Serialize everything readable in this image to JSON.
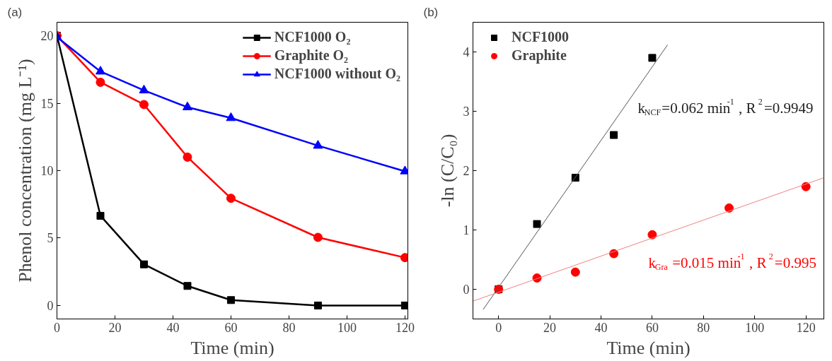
{
  "chart_data": [
    {
      "type": "line",
      "title": "(a)",
      "xlabel": "Time (min)",
      "ylabel": "Phenol concentration (mg L⁻¹)",
      "x": [
        0,
        15,
        30,
        45,
        60,
        90,
        120
      ],
      "xlim": [
        0,
        121
      ],
      "ylim": [
        -1,
        21
      ],
      "xticks": [
        0,
        20,
        40,
        60,
        80,
        100,
        120
      ],
      "yticks": [
        0,
        5,
        10,
        15,
        20
      ],
      "grid": false,
      "legend": "top right",
      "line_style": "solid",
      "series": [
        {
          "name": "NCF1000 O₂",
          "color": "#000000",
          "marker": "square",
          "values": [
            20,
            6.65,
            3.05,
            1.45,
            0.4,
            0,
            0
          ]
        },
        {
          "name": "Graphite O₂",
          "color": "#ff0000",
          "marker": "circle",
          "values": [
            20,
            16.55,
            14.9,
            11.0,
            7.95,
            5.05,
            3.55
          ]
        },
        {
          "name": "NCF1000 without O₂",
          "color": "#0000ff",
          "marker": "triangle",
          "values": [
            19.9,
            17.35,
            15.95,
            14.7,
            13.9,
            11.85,
            9.95
          ]
        }
      ]
    },
    {
      "type": "scatter",
      "title": "(b)",
      "xlabel": "Time (min)",
      "ylabel": "-ln (C/C₀)",
      "xlim": [
        -10,
        127
      ],
      "ylim": [
        -0.5,
        4.5
      ],
      "xticks": [
        0,
        20,
        40,
        60,
        80,
        100,
        120
      ],
      "yticks": [
        0,
        1,
        2,
        3,
        4
      ],
      "grid": false,
      "legend": "top left",
      "series": [
        {
          "name": "NCF1000",
          "color": "#000000",
          "marker": "square",
          "x": [
            0,
            15,
            30,
            45,
            60
          ],
          "values": [
            0,
            1.1,
            1.88,
            2.6,
            3.9
          ]
        },
        {
          "name": "Graphite",
          "color": "#ff0000",
          "marker": "circle",
          "x": [
            0,
            15,
            30,
            45,
            60,
            90,
            120
          ],
          "values": [
            0,
            0.19,
            0.29,
            0.6,
            0.92,
            1.37,
            1.73
          ]
        },
        {
          "type": "line",
          "color": "#555555",
          "marker": "none",
          "x": [
            -6,
            66
          ],
          "values": [
            -0.34,
            4.12
          ]
        },
        {
          "type": "line",
          "color": "#f08080",
          "marker": "none",
          "x": [
            -10,
            127
          ],
          "values": [
            -0.2,
            1.88
          ]
        }
      ],
      "annotations": [
        "k$_{NCF}$=0.062 min$^{-1}$, R$^{2}$=0.9949",
        "k$_{Gra}$=0.015 min$^{-1}$, R$^{2}$=0.995"
      ]
    }
  ]
}
